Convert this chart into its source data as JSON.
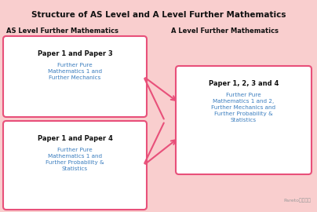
{
  "title": "Structure of AS Level and A Level Further Mathematics",
  "bg_color": "#F9CECE",
  "box_fill": "#FFFFFF",
  "box_edge_color": "#E8507A",
  "title_color": "#111111",
  "subtitle_left": "AS Level Further Mathematics",
  "subtitle_right": "A Level Further Mathematics",
  "subtitle_color": "#111111",
  "box1_title": "Paper 1 and Paper 3",
  "box1_body": "Further Pure\nMathematics 1 and\nFurther Mechanics",
  "box2_title": "Paper 1 and Paper 4",
  "box2_body": "Further Pure\nMathematics 1 and\nFurther Probability &\nStatistics",
  "box3_title": "Paper 1, 2, 3 and 4",
  "box3_body": "Further Pure\nMathematics 1 and 2,\nFurther Mechanics and\nFurther Probability &\nStatistics",
  "box_title_color": "#111111",
  "box_body_color": "#3A7DBF",
  "arrow_color": "#E8507A",
  "watermark": "Pareto二八国际",
  "watermark_color": "#999999",
  "fig_w": 4.04,
  "fig_h": 2.7,
  "dpi": 100
}
